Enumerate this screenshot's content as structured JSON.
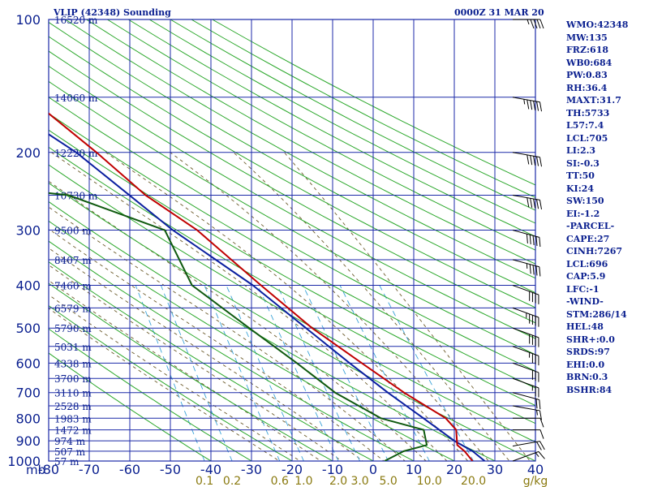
{
  "header": {
    "title": "VLIP (42348) Sounding",
    "datetime": "0000Z 31 MAR 20"
  },
  "indices": [
    "WMO:42348",
    "MW:135",
    "FRZ:618",
    "WB0:684",
    "PW:0.83",
    "RH:36.4",
    "MAXT:31.7",
    "TH:5733",
    "L57:7.4",
    "LCL:705",
    "LI:2.3",
    "SI:-0.3",
    "TT:50",
    "KI:24",
    "SW:150",
    "EI:-1.2",
    "-PARCEL-",
    "CAPE:27",
    "CINH:7267",
    "LCL:696",
    "CAP:5.9",
    "LFC:-1",
    "-WIND-",
    "STM:286/14",
    "HEL:48",
    "SHR+:0.0",
    "SRDS:97",
    "EHI:0.0",
    "BRN:0.3",
    "BSHR:84"
  ],
  "colors": {
    "grid": "#1c2aa8",
    "dry_adiabat": "#2ca82c",
    "moist_adiabat": "#6b5a2a",
    "mixing_ratio": "#3aa3d8",
    "temperature": "#c00000",
    "dewpoint": "#0f5a0f",
    "parcel": "#0a1f9f",
    "wind": "#000000",
    "text": "#0a1f8f",
    "mixing_label": "#8a7a10"
  },
  "chart_data": {
    "type": "skew-t",
    "pressure_axis_unit": "mb",
    "temperature_axis_unit": "",
    "ylim": [
      1000,
      100
    ],
    "xlim": [
      -80,
      0
    ],
    "pressure_ticks": [
      100,
      200,
      300,
      400,
      500,
      600,
      700,
      800,
      900,
      1000
    ],
    "temperature_ticks": [
      -80,
      -70,
      -60,
      -50,
      -40,
      -30,
      -20,
      -10,
      0,
      10,
      20,
      30,
      40
    ],
    "temperature_tick_labels": [
      "-80",
      "-70",
      "-60",
      "-50",
      "-40",
      "-30",
      "-20",
      "-10",
      "0",
      "10",
      "20",
      "30",
      "40"
    ],
    "mixing_ratio_unit": "g/kg",
    "mixing_ratios": [
      0.1,
      0.2,
      0.6,
      1.0,
      2.0,
      3.0,
      5.0,
      10.0,
      20.0
    ],
    "mixing_ratio_labels": [
      "0.1",
      "0.2",
      "0.6",
      "1.0",
      "2.0",
      "3.0",
      "5.0",
      "10.0",
      "20.0"
    ],
    "height_levels": [
      {
        "p": 100,
        "label": "16520 m"
      },
      {
        "p": 150,
        "label": "14060 m"
      },
      {
        "p": 200,
        "label": "12220 m"
      },
      {
        "p": 250,
        "label": "10730 m"
      },
      {
        "p": 300,
        "label": "9500 m"
      },
      {
        "p": 350,
        "label": "8407 m"
      },
      {
        "p": 400,
        "label": "7460 m"
      },
      {
        "p": 450,
        "label": "6579 m"
      },
      {
        "p": 500,
        "label": "5790 m"
      },
      {
        "p": 550,
        "label": "5031 m"
      },
      {
        "p": 600,
        "label": "4338 m"
      },
      {
        "p": 650,
        "label": "3700 m"
      },
      {
        "p": 700,
        "label": "3110 m"
      },
      {
        "p": 750,
        "label": "2528 m"
      },
      {
        "p": 800,
        "label": "1983 m"
      },
      {
        "p": 850,
        "label": "1472 m"
      },
      {
        "p": 900,
        "label": "974 m"
      },
      {
        "p": 950,
        "label": "507 m"
      },
      {
        "p": 1000,
        "label": "57 m"
      }
    ],
    "temperature": [
      [
        1000,
        24.5
      ],
      [
        950,
        23.0
      ],
      [
        920,
        21.5
      ],
      [
        850,
        22.0
      ],
      [
        800,
        20.0
      ],
      [
        700,
        11.0
      ],
      [
        600,
        2.0
      ],
      [
        500,
        -8.5
      ],
      [
        400,
        -19.0
      ],
      [
        300,
        -32.0
      ],
      [
        250,
        -43.0
      ],
      [
        200,
        -53.0
      ],
      [
        150,
        -67.0
      ],
      [
        100,
        -86.0
      ]
    ],
    "dewpoint": [
      [
        1000,
        2.8
      ],
      [
        950,
        8.0
      ],
      [
        920,
        14.0
      ],
      [
        850,
        14.0
      ],
      [
        800,
        4.0
      ],
      [
        700,
        -6.0
      ],
      [
        600,
        -14.0
      ],
      [
        500,
        -24.0
      ],
      [
        400,
        -36.0
      ],
      [
        300,
        -40.0
      ],
      [
        250,
        -62.0
      ],
      [
        240,
        -80.0
      ]
    ],
    "parcel": [
      [
        1000,
        27.5
      ],
      [
        950,
        25.0
      ],
      [
        900,
        21.0
      ],
      [
        800,
        14.5
      ],
      [
        700,
        7.0
      ],
      [
        600,
        -1.0
      ],
      [
        500,
        -10.0
      ],
      [
        400,
        -21.0
      ],
      [
        300,
        -38.0
      ],
      [
        200,
        -58.0
      ],
      [
        150,
        -76.0
      ]
    ],
    "winds": [
      {
        "p": 1000,
        "dir": 250,
        "spd": 15
      },
      {
        "p": 925,
        "dir": 260,
        "spd": 20
      },
      {
        "p": 850,
        "dir": 270,
        "spd": 10
      },
      {
        "p": 800,
        "dir": 270,
        "spd": 10
      },
      {
        "p": 750,
        "dir": 280,
        "spd": 15
      },
      {
        "p": 700,
        "dir": 285,
        "spd": 20
      },
      {
        "p": 650,
        "dir": 290,
        "spd": 25
      },
      {
        "p": 600,
        "dir": 290,
        "spd": 30
      },
      {
        "p": 550,
        "dir": 290,
        "spd": 35
      },
      {
        "p": 500,
        "dir": 290,
        "spd": 40
      },
      {
        "p": 450,
        "dir": 290,
        "spd": 45
      },
      {
        "p": 400,
        "dir": 290,
        "spd": 40
      },
      {
        "p": 350,
        "dir": 285,
        "spd": 45
      },
      {
        "p": 300,
        "dir": 285,
        "spd": 50
      },
      {
        "p": 250,
        "dir": 280,
        "spd": 50
      },
      {
        "p": 200,
        "dir": 280,
        "spd": 50
      },
      {
        "p": 150,
        "dir": 280,
        "spd": 55
      },
      {
        "p": 100,
        "dir": 270,
        "spd": 45
      }
    ]
  }
}
